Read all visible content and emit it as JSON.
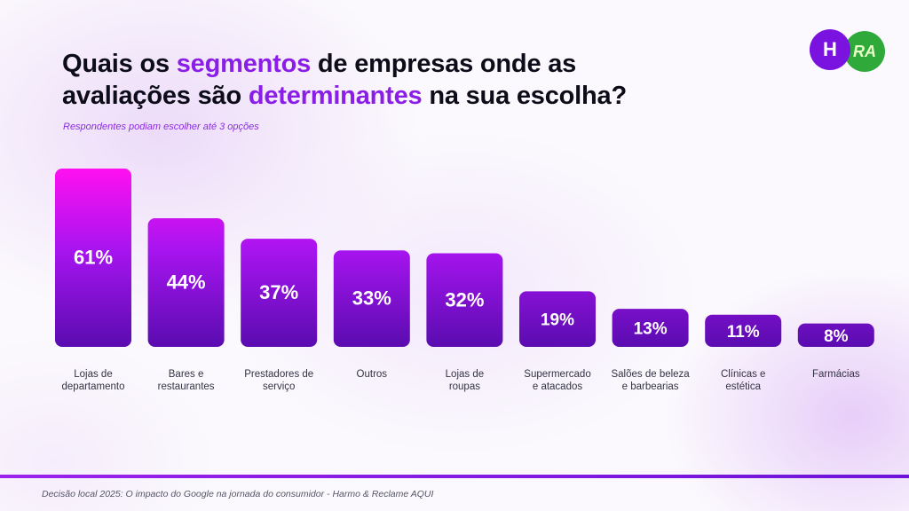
{
  "title": {
    "part1": "Quais os ",
    "highlight1": "segmentos",
    "part2": " de empresas onde as",
    "part3": "avaliações são ",
    "highlight2": "determinantes",
    "part4": " na sua escolha?"
  },
  "subtitle": "Respondentes podiam escolher até 3 opções",
  "logos": {
    "left_label": "H",
    "right_label": "RA",
    "left_icon": "harmo-logo-icon",
    "right_icon": "reclame-aqui-logo-icon"
  },
  "footer": "Decisão local 2025: O impacto do Google na jornada do consumidor - Harmo & Reclame AQUI",
  "colors": {
    "accent": "#8a1ee6",
    "bar_top": "#ff10f0",
    "bar_bottom": "#5a0cb0"
  },
  "chart_data": {
    "type": "bar",
    "categories": [
      [
        "Lojas de",
        "departamento"
      ],
      [
        "Bares e",
        "restaurantes"
      ],
      [
        "Prestadores de",
        "serviço"
      ],
      [
        "Outros"
      ],
      [
        "Lojas de",
        "roupas"
      ],
      [
        "Supermercado",
        "e atacados"
      ],
      [
        "Salões de beleza",
        "e barbearias"
      ],
      [
        "Clínicas e",
        "estética"
      ],
      [
        "Farmácias"
      ]
    ],
    "values": [
      61,
      44,
      37,
      33,
      32,
      19,
      13,
      11,
      8
    ],
    "value_labels": [
      "61%",
      "44%",
      "37%",
      "33%",
      "32%",
      "19%",
      "13%",
      "11%",
      "8%"
    ],
    "unit": "%",
    "grid": false,
    "legend": "none"
  }
}
